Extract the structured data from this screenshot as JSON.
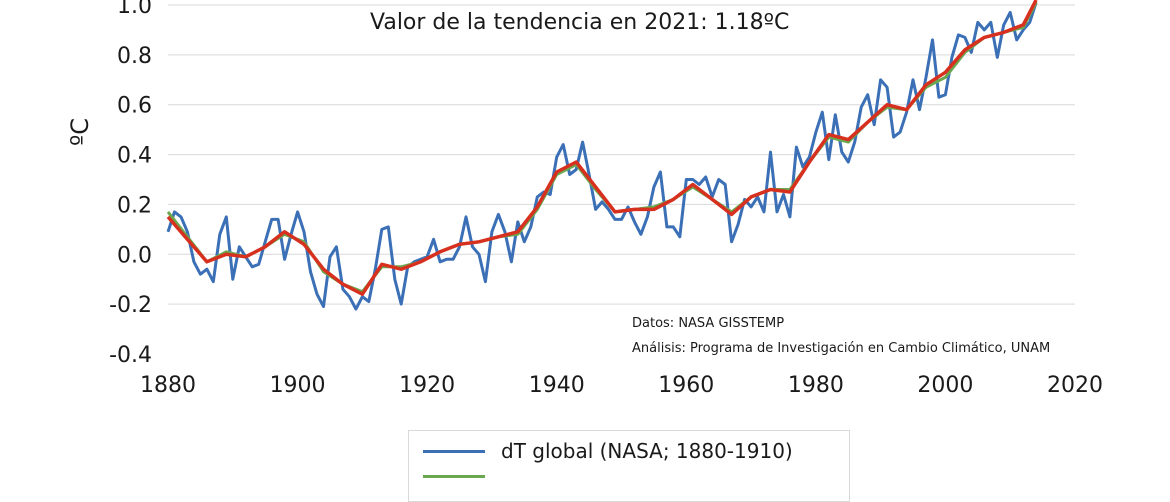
{
  "chart_data": {
    "type": "line",
    "title": "Valor de la tendencia en 2021: 1.18ºC",
    "ylabel": "ºC",
    "xlabel": "",
    "xlim": [
      1880,
      2020
    ],
    "ylim": [
      -0.4,
      1.0
    ],
    "xticks": [
      "1880",
      "1900",
      "1920",
      "1940",
      "1960",
      "1980",
      "2000",
      "2020"
    ],
    "yticks": [
      "-0.4",
      "-0.2",
      "0.0",
      "0.2",
      "0.4",
      "0.6",
      "0.8",
      "1.0"
    ],
    "grid": "horizontal",
    "legend_position": "bottom",
    "annotations": [
      "Datos: NASA GISSTEMP",
      "Análisis: Programa de Investigación en Cambio Climático, UNAM"
    ],
    "series": [
      {
        "name": "dT global (NASA; 1880-1910)",
        "color": "#3b6fb6",
        "x": [
          1880,
          1881,
          1882,
          1883,
          1884,
          1885,
          1886,
          1887,
          1888,
          1889,
          1890,
          1891,
          1892,
          1893,
          1894,
          1895,
          1896,
          1897,
          1898,
          1899,
          1900,
          1901,
          1902,
          1903,
          1904,
          1905,
          1906,
          1907,
          1908,
          1909,
          1910,
          1911,
          1912,
          1913,
          1914,
          1915,
          1916,
          1917,
          1918,
          1919,
          1920,
          1921,
          1922,
          1923,
          1924,
          1925,
          1926,
          1927,
          1928,
          1929,
          1930,
          1931,
          1932,
          1933,
          1934,
          1935,
          1936,
          1937,
          1938,
          1939,
          1940,
          1941,
          1942,
          1943,
          1944,
          1945,
          1946,
          1947,
          1948,
          1949,
          1950,
          1951,
          1952,
          1953,
          1954,
          1955,
          1956,
          1957,
          1958,
          1959,
          1960,
          1961,
          1962,
          1963,
          1964,
          1965,
          1966,
          1967,
          1968,
          1969,
          1970,
          1971,
          1972,
          1973,
          1974,
          1975,
          1976,
          1977,
          1978,
          1979,
          1980,
          1981,
          1982,
          1983,
          1984,
          1985,
          1986,
          1987,
          1988,
          1989,
          1990,
          1991,
          1992,
          1993,
          1994,
          1995,
          1996,
          1997,
          1998,
          1999,
          2000,
          2001,
          2002,
          2003,
          2004,
          2005,
          2006,
          2007,
          2008,
          2009,
          2010,
          2011,
          2012,
          2013,
          2014
        ],
        "values": [
          0.09,
          0.17,
          0.15,
          0.09,
          -0.03,
          -0.08,
          -0.06,
          -0.11,
          0.08,
          0.15,
          -0.1,
          0.03,
          -0.01,
          -0.05,
          -0.04,
          0.05,
          0.14,
          0.14,
          -0.02,
          0.08,
          0.17,
          0.09,
          -0.07,
          -0.16,
          -0.21,
          -0.01,
          0.03,
          -0.14,
          -0.17,
          -0.22,
          -0.17,
          -0.19,
          -0.06,
          0.1,
          0.11,
          -0.1,
          -0.2,
          -0.05,
          -0.03,
          -0.02,
          -0.01,
          0.06,
          -0.03,
          -0.02,
          -0.02,
          0.03,
          0.15,
          0.03,
          0.0,
          -0.11,
          0.09,
          0.16,
          0.09,
          -0.03,
          0.13,
          0.05,
          0.11,
          0.23,
          0.25,
          0.24,
          0.39,
          0.44,
          0.32,
          0.34,
          0.45,
          0.32,
          0.18,
          0.21,
          0.18,
          0.14,
          0.14,
          0.19,
          0.13,
          0.08,
          0.15,
          0.27,
          0.33,
          0.11,
          0.11,
          0.07,
          0.3,
          0.3,
          0.28,
          0.31,
          0.23,
          0.3,
          0.28,
          0.05,
          0.12,
          0.22,
          0.19,
          0.23,
          0.17,
          0.41,
          0.17,
          0.24,
          0.15,
          0.43,
          0.35,
          0.39,
          0.49,
          0.57,
          0.38,
          0.56,
          0.41,
          0.37,
          0.45,
          0.59,
          0.64,
          0.52,
          0.7,
          0.67,
          0.47,
          0.49,
          0.57,
          0.7,
          0.58,
          0.71,
          0.86,
          0.63,
          0.64,
          0.79,
          0.88,
          0.87,
          0.81,
          0.93,
          0.9,
          0.93,
          0.79,
          0.92,
          0.97,
          0.86,
          0.9,
          0.93,
          1.01
        ]
      },
      {
        "name": "",
        "color": "#6aa84f",
        "x": [
          1880,
          1883,
          1886,
          1889,
          1892,
          1895,
          1898,
          1901,
          1904,
          1907,
          1910,
          1913,
          1916,
          1919,
          1922,
          1925,
          1928,
          1931,
          1934,
          1937,
          1940,
          1943,
          1946,
          1949,
          1952,
          1955,
          1958,
          1961,
          1964,
          1967,
          1970,
          1973,
          1976,
          1979,
          1982,
          1985,
          1988,
          1991,
          1994,
          1997,
          2000,
          2003,
          2006,
          2009,
          2012,
          2014
        ],
        "values": [
          0.17,
          0.07,
          -0.03,
          0.01,
          -0.01,
          0.03,
          0.08,
          0.05,
          -0.07,
          -0.12,
          -0.15,
          -0.05,
          -0.05,
          -0.03,
          0.01,
          0.04,
          0.05,
          0.07,
          0.08,
          0.18,
          0.32,
          0.36,
          0.26,
          0.17,
          0.18,
          0.19,
          0.22,
          0.27,
          0.22,
          0.17,
          0.23,
          0.26,
          0.26,
          0.37,
          0.47,
          0.45,
          0.53,
          0.59,
          0.58,
          0.67,
          0.71,
          0.81,
          0.87,
          0.89,
          0.91,
          1.01
        ]
      },
      {
        "name": "",
        "color": "#d7301f",
        "x": [
          1880,
          1883,
          1886,
          1889,
          1892,
          1895,
          1898,
          1901,
          1904,
          1907,
          1910,
          1913,
          1916,
          1919,
          1922,
          1925,
          1928,
          1931,
          1934,
          1937,
          1940,
          1943,
          1946,
          1949,
          1952,
          1955,
          1958,
          1961,
          1964,
          1967,
          1970,
          1973,
          1976,
          1979,
          1982,
          1985,
          1988,
          1991,
          1994,
          1997,
          2000,
          2003,
          2006,
          2009,
          2012,
          2014
        ],
        "values": [
          0.15,
          0.06,
          -0.03,
          0.0,
          -0.01,
          0.03,
          0.09,
          0.04,
          -0.06,
          -0.12,
          -0.16,
          -0.04,
          -0.06,
          -0.03,
          0.01,
          0.04,
          0.05,
          0.07,
          0.09,
          0.19,
          0.33,
          0.37,
          0.27,
          0.17,
          0.18,
          0.18,
          0.22,
          0.28,
          0.22,
          0.16,
          0.23,
          0.26,
          0.25,
          0.37,
          0.48,
          0.46,
          0.53,
          0.6,
          0.58,
          0.68,
          0.73,
          0.82,
          0.87,
          0.89,
          0.92,
          1.02
        ]
      }
    ]
  }
}
